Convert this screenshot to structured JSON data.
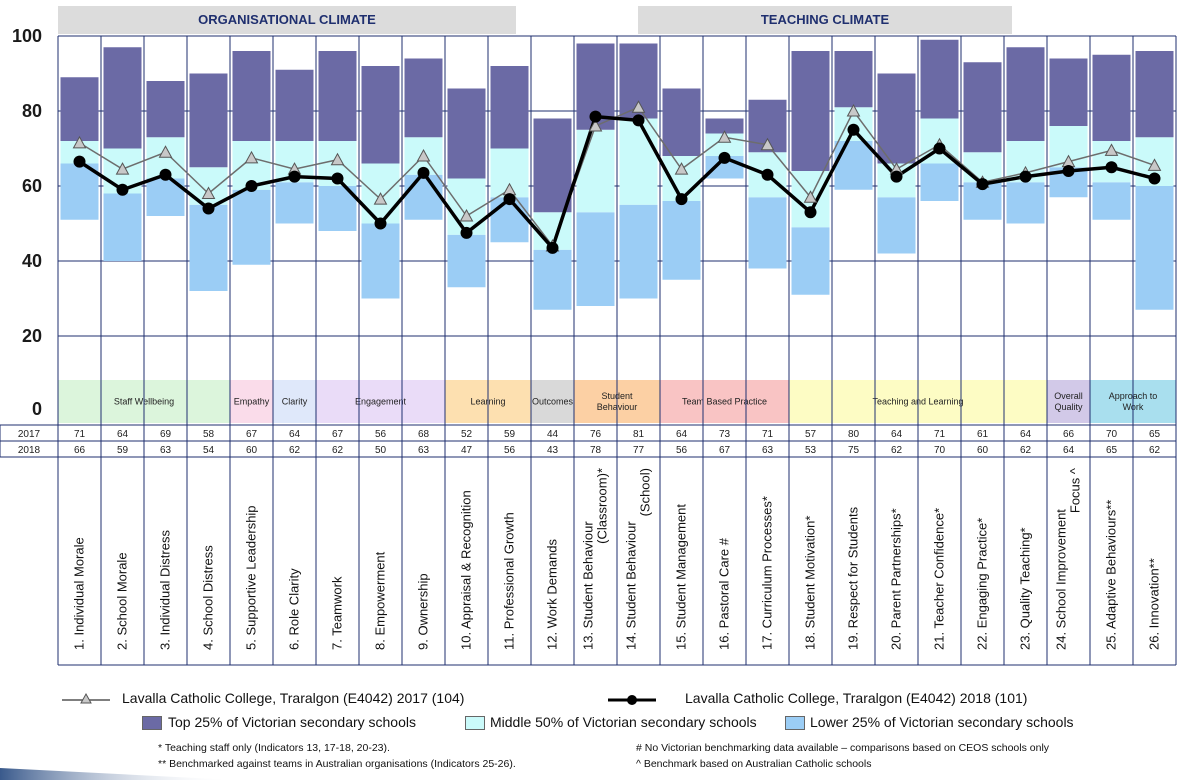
{
  "chart_data": {
    "type": "line",
    "ylim": [
      0,
      100
    ],
    "yticks": [
      0,
      20,
      40,
      60,
      80,
      100
    ],
    "section_headers": [
      {
        "label": "ORGANISATIONAL CLIMATE"
      },
      {
        "label": "TEACHING CLIMATE"
      }
    ],
    "categories": [
      "1. Individual Morale",
      "2. School Morale",
      "3. Individual Distress",
      "4. School Distress",
      "5. Supportive Leadership",
      "6. Role Clarity",
      "7. Teamwork",
      "8. Empowerment",
      "9. Ownership",
      "10. Appraisal & Recognition",
      "11. Professional Growth",
      "12. Work Demands",
      "13. Student Behaviour (Classroom)*",
      "14. Student Behaviour (School)",
      "15. Student Management",
      "16. Pastoral Care #",
      "17. Curriculum Processes*",
      "18. Student Motivation*",
      "19. Respect for Students",
      "20. Parent Partnerships*",
      "21. Teacher Confidence*",
      "22. Engaging Practice*",
      "23. Quality Teaching*",
      "24. School Improvement Focus ^",
      "25. Adaptive Behaviours**",
      "26. Innovation**"
    ],
    "category_lines": [
      [
        "1. Individual Morale"
      ],
      [
        "2. School Morale"
      ],
      [
        "3. Individual Distress"
      ],
      [
        "4. School Distress"
      ],
      [
        "5. Supportive Leadership"
      ],
      [
        "6. Role Clarity"
      ],
      [
        "7. Teamwork"
      ],
      [
        "8. Empowerment"
      ],
      [
        "9. Ownership"
      ],
      [
        "10. Appraisal & Recognition"
      ],
      [
        "11. Professional Growth"
      ],
      [
        "12. Work Demands"
      ],
      [
        "13. Student Behaviour",
        "(Classroom)*"
      ],
      [
        "14. Student Behaviour",
        "(School)"
      ],
      [
        "15. Student Management"
      ],
      [
        "16. Pastoral Care #"
      ],
      [
        "17. Curriculum Processes*"
      ],
      [
        "18. Student Motivation*"
      ],
      [
        "19. Respect for Students"
      ],
      [
        "20. Parent Partnerships*"
      ],
      [
        "21. Teacher Confidence*"
      ],
      [
        "22. Engaging Practice*"
      ],
      [
        "23. Quality Teaching*"
      ],
      [
        "24. School Improvement",
        "Focus ^"
      ],
      [
        "25. Adaptive Behaviours**"
      ],
      [
        "26. Innovation**"
      ]
    ],
    "groups": [
      {
        "name": "Staff Wellbeing",
        "start": 0,
        "end": 3,
        "color": "#dcf5dc"
      },
      {
        "name": "Empathy",
        "start": 4,
        "end": 4,
        "color": "#fadcea"
      },
      {
        "name": "Clarity",
        "start": 5,
        "end": 5,
        "color": "#dfe8fa"
      },
      {
        "name": "Engagement",
        "start": 6,
        "end": 8,
        "color": "#eadcf8"
      },
      {
        "name": "Learning",
        "start": 9,
        "end": 10,
        "color": "#fde0b0"
      },
      {
        "name": "Outcomes",
        "start": 11,
        "end": 11,
        "color": "#d9d9d9"
      },
      {
        "name": "Student Behaviour",
        "start": 12,
        "end": 13,
        "color": "#fcd0a4"
      },
      {
        "name": "Team Based Practice",
        "start": 14,
        "end": 16,
        "color": "#f9c4c4"
      },
      {
        "name": "Teaching and Learning",
        "start": 17,
        "end": 22,
        "color": "#fdfcc4"
      },
      {
        "name": "Overall Quality",
        "start": 23,
        "end": 23,
        "color": "#d2c9e8"
      },
      {
        "name": "Approach to Work",
        "start": 24,
        "end": 25,
        "color": "#a9dfee"
      }
    ],
    "table_row_labels": [
      "2017",
      "2018"
    ],
    "series": [
      {
        "name": "Lavalla Catholic College, Traralgon (E4042) 2017 (104)",
        "values": [
          71,
          64,
          69,
          58,
          67,
          64,
          67,
          56,
          68,
          52,
          59,
          44,
          76,
          81,
          64,
          73,
          71,
          57,
          80,
          64,
          71,
          61,
          64,
          66,
          70,
          65
        ],
        "marker": "triangle",
        "color": "#555555"
      },
      {
        "name": "Lavalla Catholic College, Traralgon (E4042) 2018 (101)",
        "values": [
          66,
          59,
          63,
          54,
          60,
          62,
          62,
          50,
          63,
          47,
          56,
          43,
          78,
          77,
          56,
          67,
          63,
          53,
          75,
          62,
          70,
          60,
          62,
          64,
          65,
          62
        ],
        "marker": "circle",
        "color": "#000000"
      }
    ],
    "plotted_2017": [
      71.5,
      64.5,
      69,
      58,
      67.5,
      64.5,
      67,
      56.5,
      68,
      52,
      59,
      44,
      76,
      81,
      64.5,
      73,
      71,
      57,
      80,
      64.5,
      71,
      61,
      63.5,
      66.5,
      69.5,
      65.5
    ],
    "plotted_2018": [
      66.5,
      59,
      63,
      54,
      60,
      62.5,
      62,
      50,
      63.5,
      47.5,
      56.5,
      43.5,
      78.5,
      77.5,
      56.5,
      67.5,
      63,
      53,
      75,
      62.5,
      70,
      60.5,
      62.5,
      64,
      65,
      62
    ],
    "benchmarks": [
      {
        "low": 51,
        "q25": 66,
        "q75": 72,
        "high": 89
      },
      {
        "low": 40,
        "q25": 58,
        "q75": 70,
        "high": 97
      },
      {
        "low": 52,
        "q25": 62,
        "q75": 73,
        "high": 88
      },
      {
        "low": 32,
        "q25": 55,
        "q75": 65,
        "high": 90
      },
      {
        "low": 39,
        "q25": 59,
        "q75": 72,
        "high": 96
      },
      {
        "low": 50,
        "q25": 61,
        "q75": 72,
        "high": 91
      },
      {
        "low": 48,
        "q25": 60,
        "q75": 72,
        "high": 96
      },
      {
        "low": 30,
        "q25": 50,
        "q75": 66,
        "high": 92
      },
      {
        "low": 51,
        "q25": 63,
        "q75": 73,
        "high": 94
      },
      {
        "low": 33,
        "q25": 47,
        "q75": 62,
        "high": 86
      },
      {
        "low": 45,
        "q25": 57,
        "q75": 70,
        "high": 92
      },
      {
        "low": 27,
        "q25": 43,
        "q75": 53,
        "high": 78
      },
      {
        "low": 28,
        "q25": 53,
        "q75": 75,
        "high": 98
      },
      {
        "low": 30,
        "q25": 55,
        "q75": 78,
        "high": 98
      },
      {
        "low": 35,
        "q25": 56,
        "q75": 68,
        "high": 86
      },
      {
        "low": 62,
        "q25": 68,
        "q75": 74,
        "high": 78
      },
      {
        "low": 38,
        "q25": 57,
        "q75": 69,
        "high": 83
      },
      {
        "low": 31,
        "q25": 49,
        "q75": 64,
        "high": 96
      },
      {
        "low": 59,
        "q25": 72,
        "q75": 81,
        "high": 96
      },
      {
        "low": 42,
        "q25": 57,
        "q75": 66,
        "high": 90
      },
      {
        "low": 56,
        "q25": 66,
        "q75": 78,
        "high": 99
      },
      {
        "low": 51,
        "q25": 61,
        "q75": 69,
        "high": 93
      },
      {
        "low": 50,
        "q25": 61,
        "q75": 72,
        "high": 97
      },
      {
        "low": 57,
        "q25": 65,
        "q75": 76,
        "high": 94
      },
      {
        "low": 51,
        "q25": 61,
        "q75": 72,
        "high": 95
      },
      {
        "low": 27,
        "q25": 60,
        "q75": 73,
        "high": 96
      }
    ],
    "benchmark_colors": {
      "top": "#6b6aa5",
      "middle": "#cafafa",
      "lower": "#9bcdf5"
    },
    "grid": true,
    "legend_position": "bottom"
  },
  "legend": {
    "series_2017": "Lavalla Catholic College, Traralgon (E4042) 2017 (104)",
    "series_2018": "Lavalla Catholic College, Traralgon (E4042) 2018 (101)",
    "top": "Top 25% of Victorian secondary schools",
    "middle": "Middle 50% of Victorian secondary schools",
    "lower": "Lower 25% of Victorian secondary schools"
  },
  "notes": {
    "teaching_staff": "* Teaching staff only (Indicators 13, 17-18, 20-23).",
    "benchmarked": "** Benchmarked against teams in Australian organisations (Indicators 25-26).",
    "no_benchmark": "# No Victorian benchmarking data available – comparisons based on CEOS schools only",
    "catholic": "^ Benchmark based on Australian Catholic schools"
  }
}
